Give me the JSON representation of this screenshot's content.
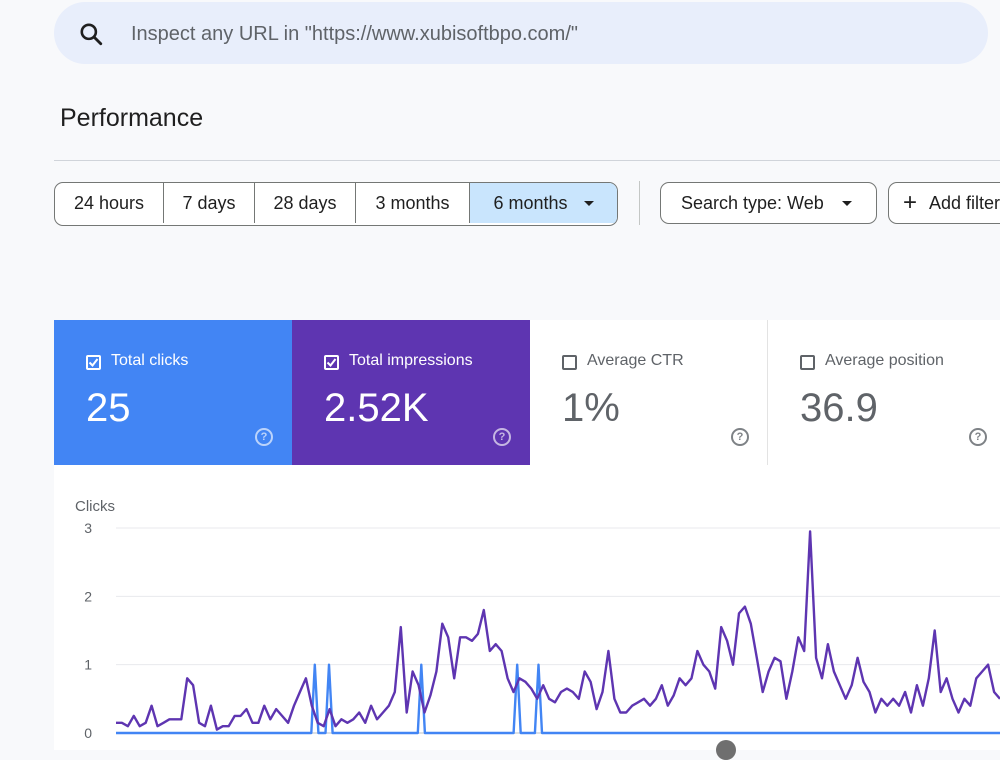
{
  "search": {
    "placeholder": "Inspect any URL in \"https://www.xubisoftbpo.com/\"",
    "icon": "search-icon"
  },
  "page_title": "Performance",
  "date_ranges": [
    {
      "label": "24 hours",
      "selected": false
    },
    {
      "label": "7 days",
      "selected": false
    },
    {
      "label": "28 days",
      "selected": false
    },
    {
      "label": "3 months",
      "selected": false
    },
    {
      "label": "6 months",
      "selected": true
    }
  ],
  "filters": {
    "search_type": "Search type: Web",
    "add_filter": "Add filter"
  },
  "metrics": [
    {
      "label": "Total clicks",
      "value": "25",
      "checked": true,
      "color": "#4285f4"
    },
    {
      "label": "Total impressions",
      "value": "2.52K",
      "checked": true,
      "color": "#5e35b1"
    },
    {
      "label": "Average CTR",
      "value": "1%",
      "checked": false,
      "color": "#ffffff"
    },
    {
      "label": "Average position",
      "value": "36.9",
      "checked": false,
      "color": "#ffffff"
    }
  ],
  "chart_data": {
    "type": "line",
    "ylabel": "Clicks",
    "ylim": [
      0,
      3
    ],
    "yticks": [
      "0",
      "1",
      "2",
      "3"
    ],
    "grid": true,
    "series": [
      {
        "name": "Total clicks",
        "color": "#4285f4",
        "values": [
          0,
          0,
          0,
          0,
          0,
          0,
          0,
          0,
          0,
          0,
          0,
          0,
          0,
          0,
          0,
          0,
          0,
          0,
          0,
          0,
          0,
          0,
          0,
          0,
          0,
          0,
          0,
          0,
          0,
          0,
          0,
          0,
          0,
          0,
          0,
          0,
          0,
          0,
          0,
          0,
          0,
          0,
          0,
          0,
          0,
          0,
          0,
          0,
          0,
          0,
          0,
          0,
          0,
          0,
          0,
          0,
          1,
          0,
          0,
          0,
          1,
          0,
          0,
          0,
          0,
          0,
          0,
          0,
          0,
          0,
          0,
          0,
          0,
          0,
          0,
          0,
          0,
          0,
          0,
          0,
          0,
          0,
          0,
          0,
          0,
          0,
          1,
          0,
          0,
          0,
          0,
          0,
          0,
          0,
          0,
          0,
          0,
          0,
          0,
          0,
          0,
          0,
          0,
          0,
          0,
          0,
          0,
          0,
          0,
          0,
          0,
          0,
          0,
          1,
          0,
          0,
          0,
          0,
          0,
          1,
          0,
          0,
          0,
          0,
          0,
          0,
          0,
          0,
          0,
          0,
          0,
          0,
          0,
          0,
          0,
          0,
          0,
          0,
          0,
          0,
          0,
          0,
          0,
          0,
          0,
          0,
          0,
          0,
          0,
          0,
          0,
          0,
          0,
          0,
          0,
          0,
          0,
          0,
          0,
          0,
          0,
          0,
          0,
          0,
          0,
          0,
          0,
          0,
          0,
          0,
          0,
          0,
          0,
          0,
          0,
          0,
          0,
          0,
          0,
          0,
          0,
          0,
          0,
          0,
          0,
          0,
          0,
          0,
          0,
          0,
          0,
          0,
          0,
          0,
          0,
          0,
          0,
          0,
          0,
          0,
          0,
          0,
          0,
          0,
          0,
          0,
          0,
          0,
          0,
          0,
          0,
          0,
          0,
          0,
          0,
          0,
          0,
          0,
          0,
          0,
          0,
          0,
          0,
          0,
          0,
          0,
          0,
          0,
          0,
          0,
          0,
          0,
          0,
          0,
          0,
          0,
          0,
          0,
          0,
          0,
          0,
          0,
          0,
          0,
          0,
          0,
          0,
          0,
          0,
          0
        ]
      },
      {
        "name": "Total impressions",
        "color": "#5e35b1",
        "values": [
          0.15,
          0.15,
          0.1,
          0.25,
          0.1,
          0.15,
          0.4,
          0.1,
          0.15,
          0.2,
          0.2,
          0.2,
          0.8,
          0.7,
          0.15,
          0.1,
          0.4,
          0.05,
          0.1,
          0.1,
          0.25,
          0.25,
          0.35,
          0.15,
          0.15,
          0.4,
          0.2,
          0.35,
          0.25,
          0.15,
          0.4,
          0.6,
          0.8,
          0.4,
          0.15,
          0.1,
          0.35,
          0.1,
          0.2,
          0.15,
          0.2,
          0.3,
          0.15,
          0.4,
          0.2,
          0.3,
          0.4,
          0.6,
          1.55,
          0.3,
          0.9,
          0.7,
          0.3,
          0.55,
          0.9,
          1.6,
          1.4,
          0.8,
          1.4,
          1.4,
          1.35,
          1.45,
          1.8,
          1.2,
          1.3,
          1.2,
          0.8,
          0.6,
          0.8,
          0.75,
          0.65,
          0.5,
          0.7,
          0.5,
          0.45,
          0.6,
          0.65,
          0.6,
          0.5,
          0.9,
          0.75,
          0.35,
          0.6,
          1.2,
          0.5,
          0.3,
          0.3,
          0.4,
          0.45,
          0.5,
          0.4,
          0.5,
          0.7,
          0.4,
          0.55,
          0.8,
          0.7,
          0.8,
          1.2,
          1.0,
          0.9,
          0.65,
          1.55,
          1.35,
          1.0,
          1.75,
          1.85,
          1.6,
          1.1,
          0.6,
          0.9,
          1.1,
          1.05,
          0.5,
          0.9,
          1.4,
          1.2,
          2.95,
          1.1,
          0.8,
          1.3,
          0.9,
          0.7,
          0.5,
          0.7,
          1.1,
          0.75,
          0.6,
          0.3,
          0.5,
          0.4,
          0.5,
          0.4,
          0.6,
          0.3,
          0.7,
          0.4,
          0.8,
          1.5,
          0.6,
          0.8,
          0.5,
          0.3,
          0.5,
          0.4,
          0.8,
          0.9,
          1.0,
          0.6,
          0.5
        ]
      }
    ]
  }
}
